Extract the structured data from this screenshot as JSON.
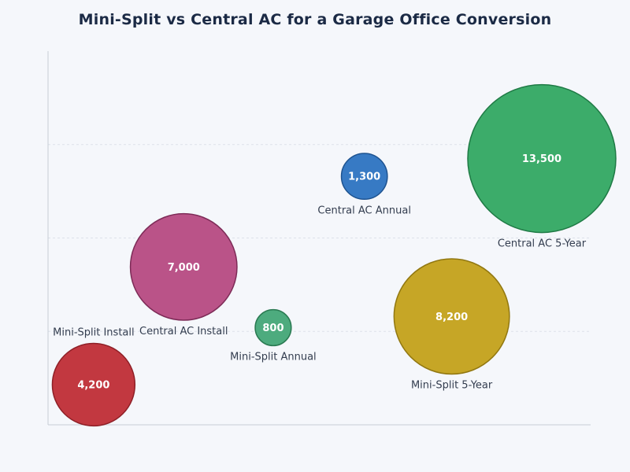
{
  "chart_data": {
    "type": "bubble",
    "title": "Mini-Split vs Central AC for a Garage Office Conversion",
    "xlabel": "",
    "ylabel": "",
    "grid": "horizontal",
    "legend": "none",
    "xlim": [
      0,
      100
    ],
    "ylim": [
      0,
      4
    ],
    "points": [
      {
        "label": "Mini-Split Install",
        "value": 4200,
        "value_label": "4,200",
        "x": 8.4,
        "y": 0.43,
        "color": "#c0323a",
        "stroke": "#8e1f26",
        "label_pos": "above"
      },
      {
        "label": "Central AC Install",
        "value": 7000,
        "value_label": "7,000",
        "x": 25,
        "y": 1.69,
        "color": "#b84d84",
        "stroke": "#7d2b57",
        "label_pos": "below"
      },
      {
        "label": "Mini-Split Annual",
        "value": 800,
        "value_label": "800",
        "x": 41.5,
        "y": 1.04,
        "color": "#47a87a",
        "stroke": "#2a7a52",
        "label_pos": "below"
      },
      {
        "label": "Central AC Annual",
        "value": 1300,
        "value_label": "1,300",
        "x": 58.3,
        "y": 2.66,
        "color": "#3176c2",
        "stroke": "#1e5390",
        "label_pos": "below"
      },
      {
        "label": "Mini-Split 5-Year",
        "value": 8200,
        "value_label": "8,200",
        "x": 74.4,
        "y": 1.16,
        "color": "#c4a31f",
        "stroke": "#917710",
        "label_pos": "below"
      },
      {
        "label": "Central AC 5-Year",
        "value": 13500,
        "value_label": "13,500",
        "x": 91,
        "y": 2.85,
        "color": "#36a965",
        "stroke": "#1f7a45",
        "label_pos": "below"
      }
    ]
  }
}
